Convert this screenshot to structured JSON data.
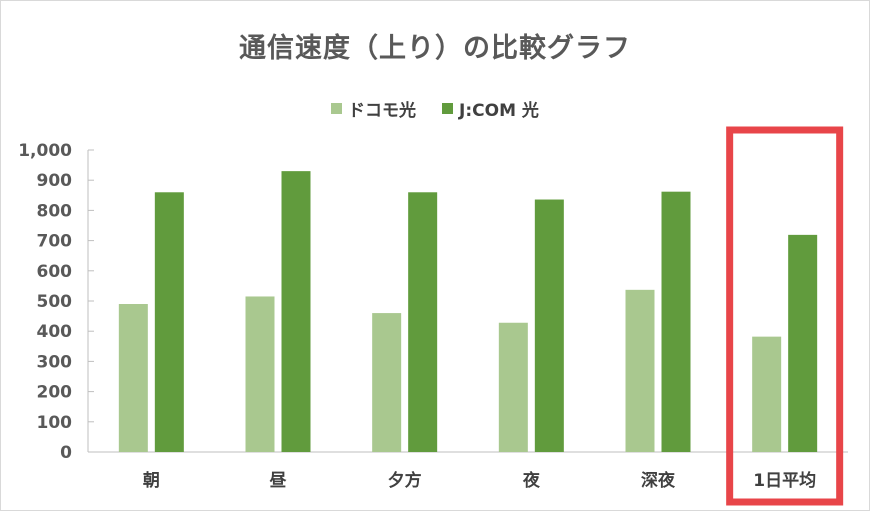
{
  "chart_data": {
    "type": "bar",
    "title": "通信速度（上り）の比較グラフ",
    "categories": [
      "朝",
      "昼",
      "夕方",
      "夜",
      "深夜",
      "1日平均"
    ],
    "series": [
      {
        "name": "ドコモ光",
        "values": [
          490,
          515,
          460,
          428,
          537,
          382
        ],
        "color": "#a9c88f"
      },
      {
        "name": "J:COM 光",
        "values": [
          860,
          930,
          860,
          836,
          862,
          719
        ],
        "color": "#619b3d"
      }
    ],
    "ylim": [
      0,
      1000
    ],
    "yticks": [
      0,
      100,
      200,
      300,
      400,
      500,
      600,
      700,
      800,
      900,
      1000
    ],
    "ytick_labels": [
      "0",
      "100",
      "200",
      "300",
      "400",
      "500",
      "600",
      "700",
      "800",
      "900",
      "1,000"
    ],
    "grid": false,
    "legend_position": "top",
    "highlight": {
      "category": "1日平均",
      "color": "#e84549"
    }
  }
}
